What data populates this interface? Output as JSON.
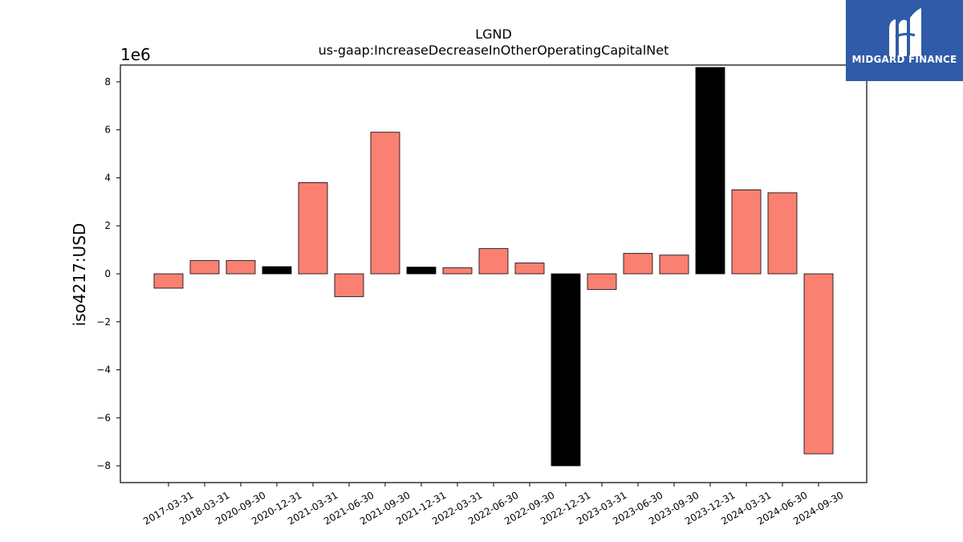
{
  "brand": {
    "name": "MIDGARD FINANCE",
    "logo_icon": "mf-monogram-icon",
    "background": "#2f5ba8"
  },
  "chart_data": {
    "type": "bar",
    "title": "LGND",
    "subtitle": "us-gaap:IncreaseDecreaseInOtherOperatingCapitalNet",
    "xlabel": "",
    "ylabel": "iso4217:USD",
    "y_scale_label": "1e6",
    "y_multiplier": 1000000,
    "ylim": [
      -8.7,
      8.7
    ],
    "yticks": [
      -8,
      -6,
      -4,
      -2,
      0,
      2,
      4,
      6,
      8
    ],
    "categories": [
      "2017-03-31",
      "2018-03-31",
      "2020-09-30",
      "2020-12-31",
      "2021-03-31",
      "2021-06-30",
      "2021-09-30",
      "2021-12-31",
      "2022-03-31",
      "2022-06-30",
      "2022-09-30",
      "2022-12-31",
      "2023-03-31",
      "2023-06-30",
      "2023-09-30",
      "2023-12-31",
      "2024-03-31",
      "2024-06-30",
      "2024-09-30"
    ],
    "values": [
      -0.6,
      0.55,
      0.55,
      0.3,
      3.8,
      -0.95,
      5.9,
      0.28,
      0.25,
      1.05,
      0.45,
      -8.0,
      -0.65,
      0.85,
      0.78,
      8.6,
      3.5,
      3.38,
      -7.5
    ],
    "highlight": [
      false,
      false,
      false,
      true,
      false,
      false,
      false,
      true,
      false,
      false,
      false,
      true,
      false,
      false,
      false,
      true,
      false,
      false,
      false
    ],
    "colors": {
      "bar": "#fa8072",
      "highlight": "#000000",
      "edge": "#000000"
    },
    "grid": false,
    "legend": "none"
  }
}
